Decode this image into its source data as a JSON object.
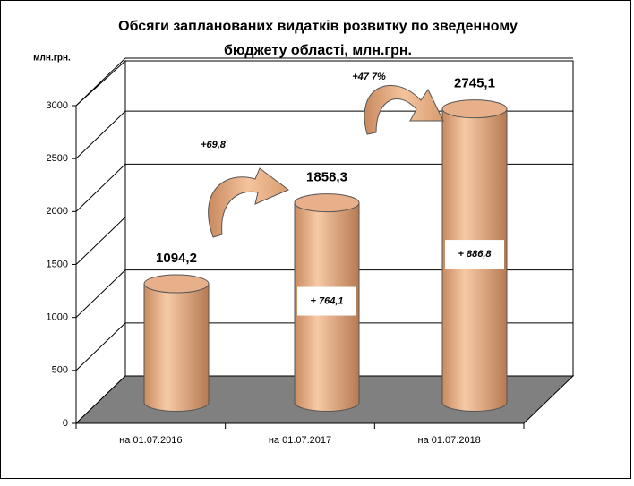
{
  "chart_data": {
    "type": "cylinder",
    "title": [
      "Обсяги запланованих видатків розвитку по зведенному",
      "бюджету області, млн.грн."
    ],
    "y_label": "млн.грн.",
    "categories": [
      "на 01.07.2016",
      "на 01.07.2017",
      "на 01.07.2018"
    ],
    "values": [
      1094.2,
      1858.3,
      2745.1
    ],
    "value_labels": [
      "1094,2",
      "1858,3",
      "2745,1"
    ],
    "color": "#e8b08a",
    "ylim": [
      0,
      3000
    ],
    "yticks": [
      0,
      500,
      1000,
      1500,
      2000,
      2500,
      3000
    ],
    "grid": true,
    "growth_labels": [
      "+69,8",
      "+47 7%"
    ],
    "increment_labels": [
      "+ 764,1",
      "+ 886,8"
    ]
  }
}
